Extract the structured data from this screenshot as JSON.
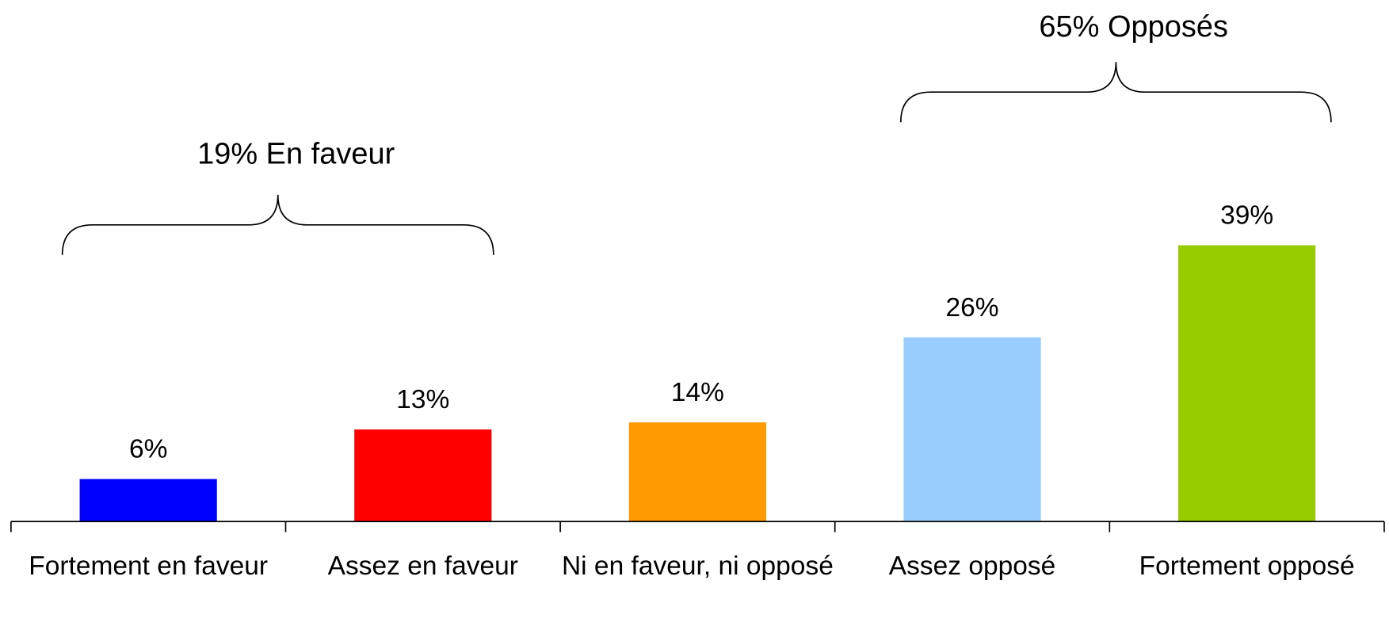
{
  "chart_data": {
    "type": "bar",
    "categories": [
      "Fortement en faveur",
      "Assez en faveur",
      "Ni en faveur, ni opposé",
      "Assez opposé",
      "Fortement opposé"
    ],
    "values": [
      6,
      13,
      14,
      26,
      39
    ],
    "value_labels": [
      "6%",
      "13%",
      "14%",
      "26%",
      "39%"
    ],
    "colors": [
      "#0000ff",
      "#ff0000",
      "#ff9900",
      "#99ccff",
      "#99cc00"
    ],
    "annotations": [
      "19% En faveur",
      "65% Opposés"
    ]
  }
}
